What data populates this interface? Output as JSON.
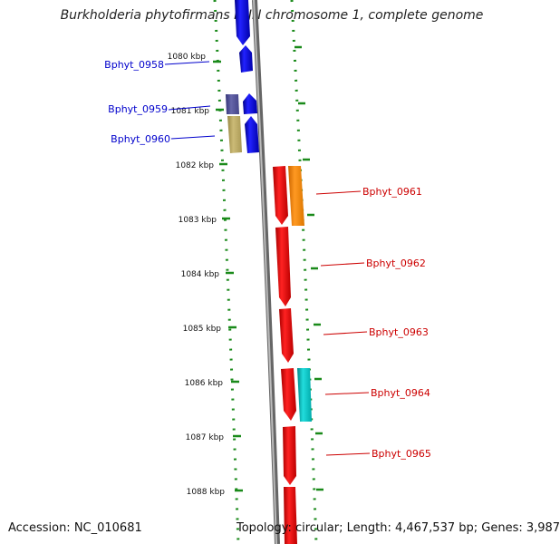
{
  "header": {
    "title": "Burkholderia phytofirmans PsJN chromosome 1, complete genome"
  },
  "footer": {
    "accession": "Accession: NC_010681",
    "genome_info": "Topology: circular; Length: 4,467,537 bp; Genes: 3,987"
  },
  "scale": {
    "labels": [
      "1080 kbp",
      "1081 kbp",
      "1082 kbp",
      "1083 kbp",
      "1084 kbp",
      "1085 kbp",
      "1086 kbp",
      "1087 kbp",
      "1088 kbp"
    ]
  },
  "genes": {
    "left_strand": [
      "Bphyt_0958",
      "Bphyt_0959",
      "Bphyt_0960"
    ],
    "right_strand": [
      "Bphyt_0961",
      "Bphyt_0962",
      "Bphyt_0963",
      "Bphyt_0964",
      "Bphyt_0965"
    ]
  },
  "colors": {
    "left_label": "#0000cc",
    "right_label": "#cc0000",
    "cds_forward_blue": "#0000ee",
    "cds_reverse_red": "#ee0000",
    "feature_orange": "#ff8800",
    "feature_cyan": "#00c8c8",
    "feature_purple": "#555599",
    "feature_khaki": "#bbaa66",
    "backbone": "#888888",
    "ticks": "#1a8a1a"
  }
}
